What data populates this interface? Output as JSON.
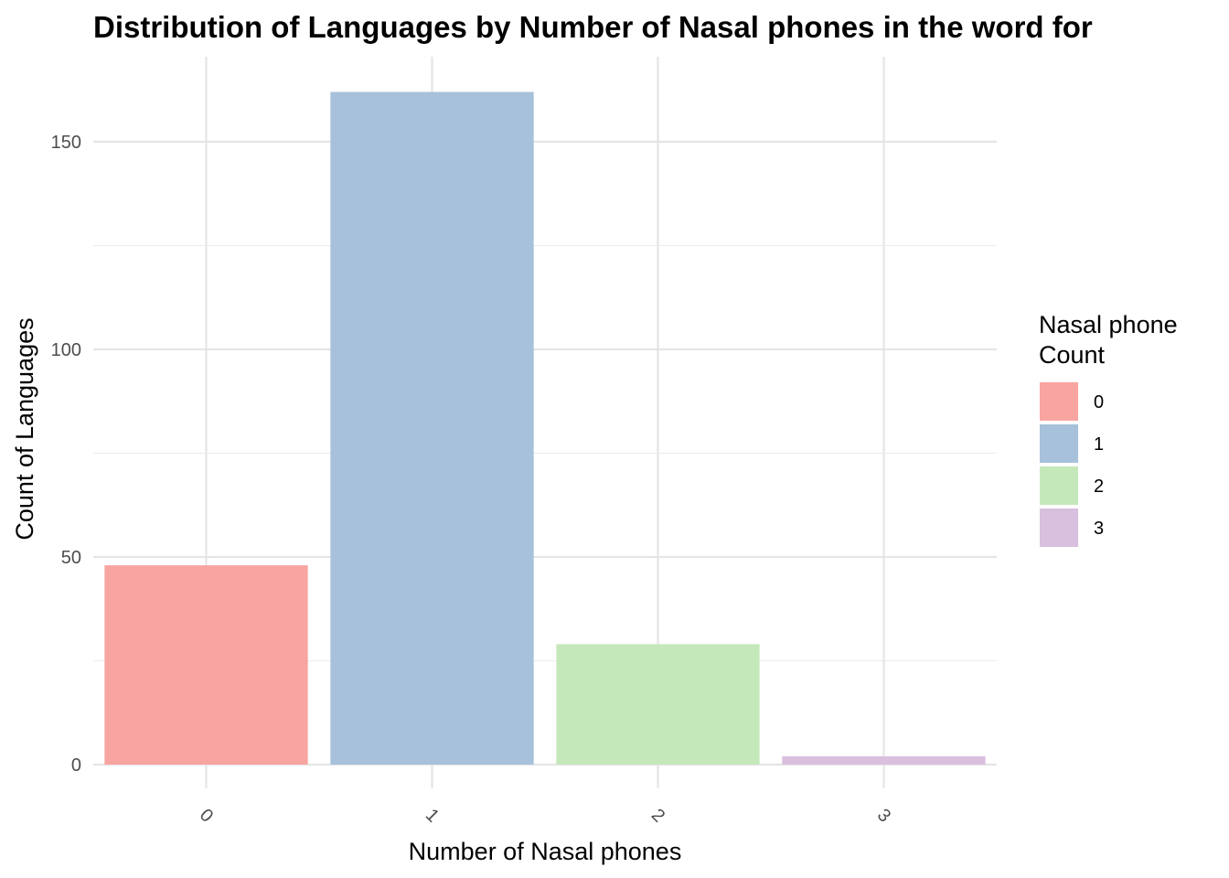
{
  "chart_data": {
    "type": "bar",
    "title": "Distribution of Languages by Number of Nasal phones in the word for",
    "xlabel": "Number of Nasal phones",
    "ylabel": "Count of Languages",
    "categories": [
      "0",
      "1",
      "2",
      "3"
    ],
    "values": [
      48,
      162,
      29,
      2
    ],
    "colors": [
      "#F8A4A0",
      "#A7C1DB",
      "#C5E8BA",
      "#D8C0DE"
    ],
    "ylim": [
      0,
      170
    ],
    "yticks": [
      0,
      50,
      100,
      150
    ],
    "grid": true,
    "legend": {
      "title": [
        "Nasal phone",
        "Count"
      ],
      "placement": "right",
      "entries": [
        "0",
        "1",
        "2",
        "3"
      ]
    }
  }
}
